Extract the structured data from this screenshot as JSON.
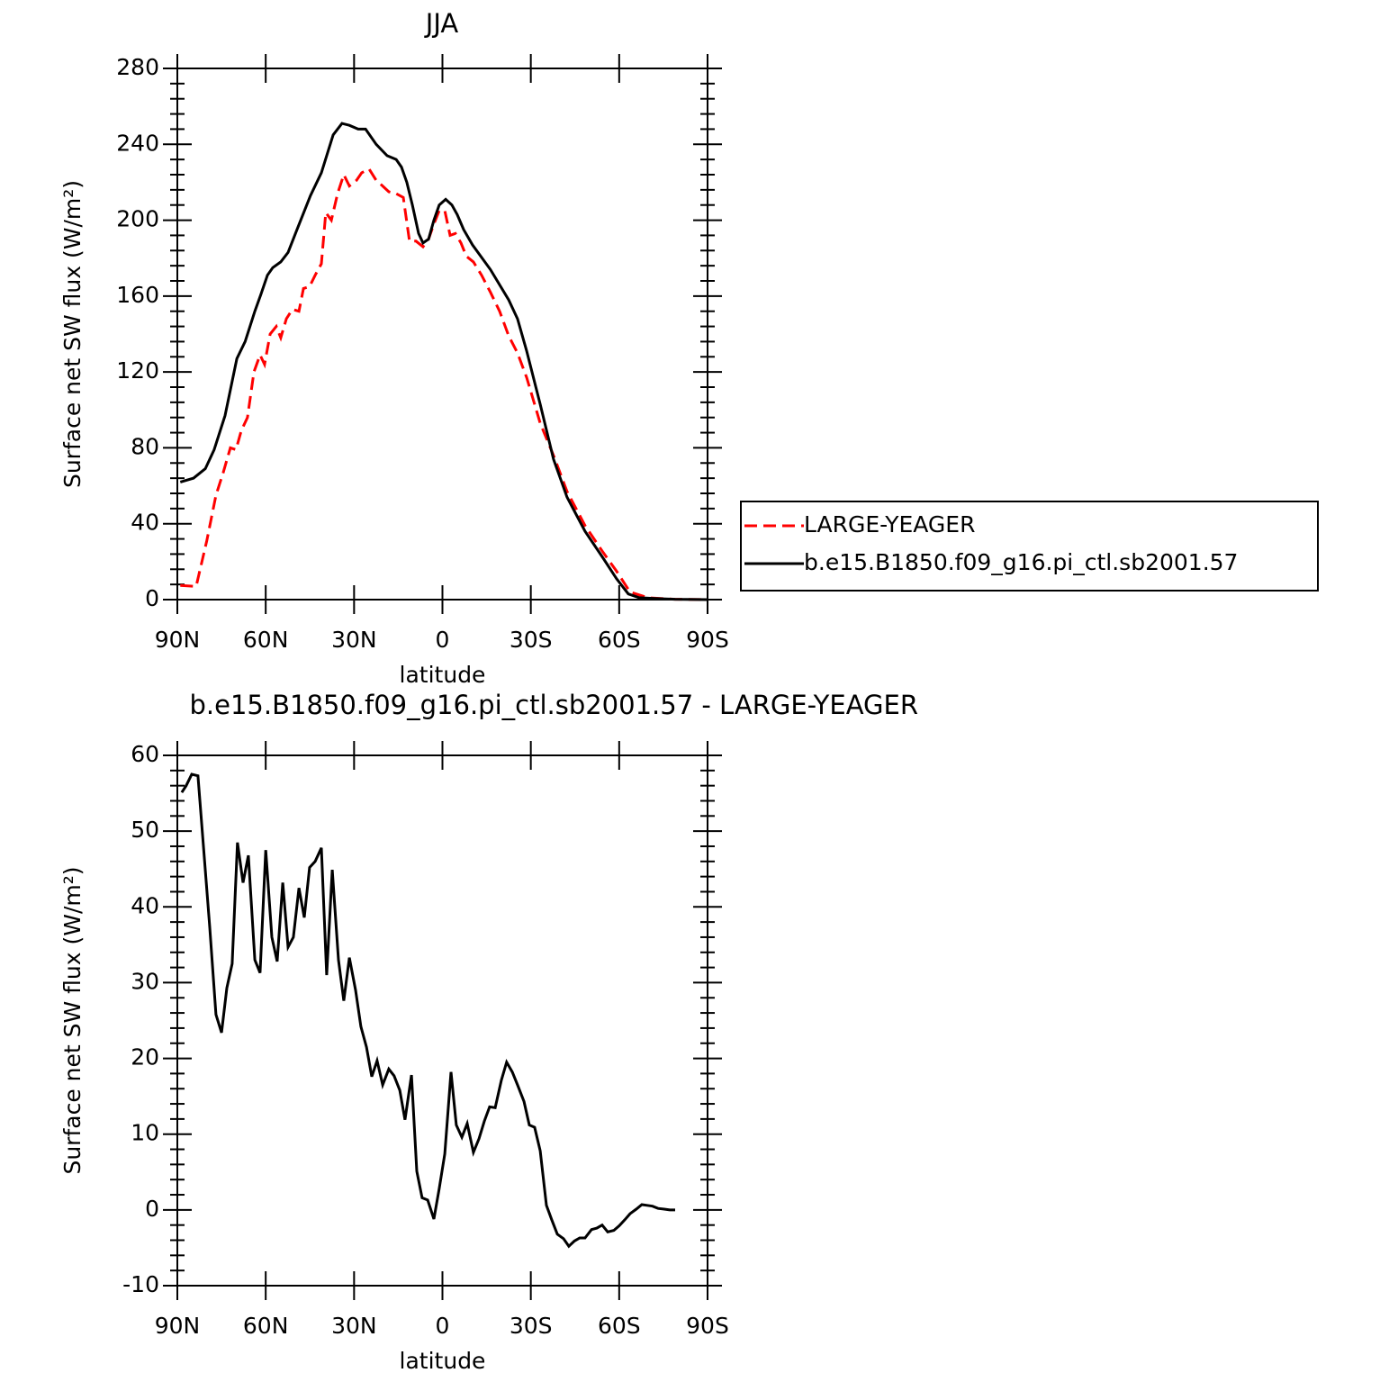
{
  "chart_data": [
    {
      "type": "line",
      "title": "JJA",
      "xlabel": "latitude",
      "ylabel": "Surface net SW flux (W/m²)",
      "xlim": [
        90,
        -90
      ],
      "xticks": [
        {
          "value": 90,
          "label": "90N"
        },
        {
          "value": 60,
          "label": "60N"
        },
        {
          "value": 30,
          "label": "30N"
        },
        0,
        {
          "value": -30,
          "label": "30S"
        },
        {
          "value": -60,
          "label": "60S"
        },
        {
          "value": -90,
          "label": "90S"
        }
      ],
      "ylim": [
        0,
        280
      ],
      "yticks": [
        0,
        40,
        80,
        120,
        160,
        200,
        240,
        280
      ],
      "legend": "right",
      "series": [
        {
          "name": "LARGE-YEAGER",
          "color": "#ff0000",
          "line_style": "dashed",
          "x": [
            89,
            83.6,
            80,
            76.9,
            74.4,
            72,
            70.1,
            68.3,
            66.2,
            64,
            61.9,
            60.4,
            58.5,
            56.4,
            54.9,
            53,
            50.9,
            48.7,
            47.2,
            45.1,
            43.2,
            41.1,
            39.6,
            37.7,
            35.6,
            33.5,
            31.6,
            29.2,
            27.4,
            24.9,
            22.5,
            20.3,
            18.2,
            15.7,
            13.3,
            11.2,
            9,
            6.6,
            4.7,
            2.9,
            1.1,
            -0.8,
            -2.6,
            -4.4,
            -6.3,
            -8.1,
            -10.5,
            -13.3,
            -16.3,
            -19.4,
            -22.5,
            -25.5,
            -28.6,
            -33.2,
            -37.7,
            -42.3,
            -48.4,
            -54.5,
            -59.1,
            -63.7,
            -69.8,
            -79,
            -90
          ],
          "values": [
            7.5,
            7,
            31,
            55,
            67,
            80,
            79,
            89,
            96,
            120,
            129,
            124,
            140,
            144,
            138,
            148,
            153,
            152,
            164,
            165,
            171,
            177,
            204,
            200,
            214,
            224,
            218,
            221,
            225,
            227,
            221,
            218,
            215,
            214,
            212,
            189,
            189,
            186,
            190,
            198,
            205,
            205,
            192,
            193,
            188,
            181,
            178,
            171,
            162,
            152,
            139,
            130,
            117,
            93,
            76,
            57,
            39,
            25,
            15,
            4,
            1,
            0.2,
            0
          ]
        },
        {
          "name": "b.e15.B1850.f09_g16.pi_ctl.sb2001.57",
          "color": "#000000",
          "line_style": "solid",
          "x": [
            89,
            84.5,
            80.5,
            77.5,
            73.8,
            69.8,
            67,
            63.7,
            61.6,
            59.4,
            57.6,
            54.9,
            52.4,
            49.4,
            44.8,
            41.1,
            37.1,
            34.1,
            31.6,
            28.6,
            26.1,
            22.5,
            18.8,
            15.7,
            13.9,
            12.1,
            10.2,
            8.1,
            6.6,
            4.7,
            2.9,
            1.1,
            -1.1,
            -3.2,
            -5,
            -7.2,
            -10.2,
            -16.3,
            -22.5,
            -25.5,
            -28.6,
            -33.2,
            -37.7,
            -42.3,
            -48.4,
            -54.5,
            -59.1,
            -63.1,
            -66.8,
            -72.9,
            -79,
            -90
          ],
          "values": [
            62,
            64,
            69,
            79,
            97,
            127,
            136,
            152,
            161,
            171,
            175,
            178,
            183,
            195,
            213,
            225,
            245,
            251,
            250,
            248,
            248,
            240,
            234,
            232,
            228,
            220,
            208,
            193,
            188,
            190,
            200,
            208,
            211,
            208,
            203,
            195,
            187,
            174,
            158,
            148,
            131,
            103,
            74,
            54,
            36,
            22,
            11,
            3,
            1,
            0.5,
            0.2,
            0
          ]
        }
      ]
    },
    {
      "type": "line",
      "title": "b.e15.B1850.f09_g16.pi_ctl.sb2001.57 - LARGE-YEAGER",
      "xlabel": "latitude",
      "ylabel": "Surface net SW flux (W/m²)",
      "xlim": [
        90,
        -90
      ],
      "xticks": [
        {
          "value": 90,
          "label": "90N"
        },
        {
          "value": 60,
          "label": "60N"
        },
        {
          "value": 30,
          "label": "30N"
        },
        0,
        {
          "value": -30,
          "label": "30S"
        },
        {
          "value": -60,
          "label": "60S"
        },
        {
          "value": -90,
          "label": "90S"
        }
      ],
      "ylim": [
        -10,
        60
      ],
      "yticks": [
        -10,
        0,
        10,
        20,
        30,
        40,
        50,
        60
      ],
      "series": [
        {
          "color": "#000000",
          "line_style": "solid",
          "x": [
            88.5,
            87,
            85.1,
            83,
            79,
            76.9,
            75,
            73.2,
            71.4,
            69.6,
            67.7,
            65.9,
            63.7,
            61.9,
            60,
            57.9,
            56.1,
            54.2,
            52.4,
            50.6,
            48.7,
            46.9,
            45.1,
            43.2,
            41.1,
            39.3,
            37.4,
            35.3,
            33.5,
            31.6,
            29.5,
            27.7,
            25.8,
            24,
            22.2,
            20.3,
            18.2,
            16.4,
            14.5,
            12.7,
            10.5,
            8.7,
            6.9,
            5,
            2.9,
            1.1,
            -0.8,
            -2.9,
            -4.7,
            -6.6,
            -8.4,
            -10.5,
            -12.4,
            -14.2,
            -16,
            -17.9,
            -20,
            -21.8,
            -23.7,
            -25.5,
            -27.7,
            -29.5,
            -31.3,
            -33.2,
            -35.3,
            -37.1,
            -39,
            -41.1,
            -42.9,
            -44.8,
            -46.6,
            -48.4,
            -50.6,
            -52.4,
            -54.2,
            -56.1,
            -58.2,
            -60,
            -61.9,
            -63.7,
            -65.8,
            -67.7,
            -69.5,
            -71.3,
            -73.2,
            -75.3,
            -77.2,
            -79
          ],
          "values": [
            55.1,
            56,
            57.5,
            57.3,
            37.3,
            25.8,
            23.4,
            29.3,
            32.5,
            48.5,
            43.2,
            46.8,
            33,
            31.3,
            47.5,
            36,
            32.8,
            43.2,
            34.7,
            36,
            42.5,
            38.6,
            45.2,
            46,
            47.8,
            31,
            44.9,
            33,
            27.6,
            33.3,
            29,
            24.2,
            21.5,
            17.6,
            19.7,
            16.5,
            18.6,
            17.7,
            15.8,
            11.9,
            17.8,
            5.1,
            1.6,
            1.3,
            -1.2,
            2.8,
            7.4,
            18.2,
            11.2,
            9.6,
            11.4,
            7.6,
            9.4,
            11.7,
            13.6,
            13.5,
            17.1,
            19.5,
            18.2,
            16.5,
            14.3,
            11.2,
            10.9,
            7.8,
            0.6,
            -1.3,
            -3.2,
            -3.8,
            -4.8,
            -4.1,
            -3.7,
            -3.7,
            -2.6,
            -2.4,
            -2,
            -2.9,
            -2.7,
            -2.1,
            -1.3,
            -0.5,
            0.1,
            0.7,
            0.6,
            0.5,
            0.2,
            0.1,
            0,
            0
          ]
        }
      ]
    }
  ]
}
